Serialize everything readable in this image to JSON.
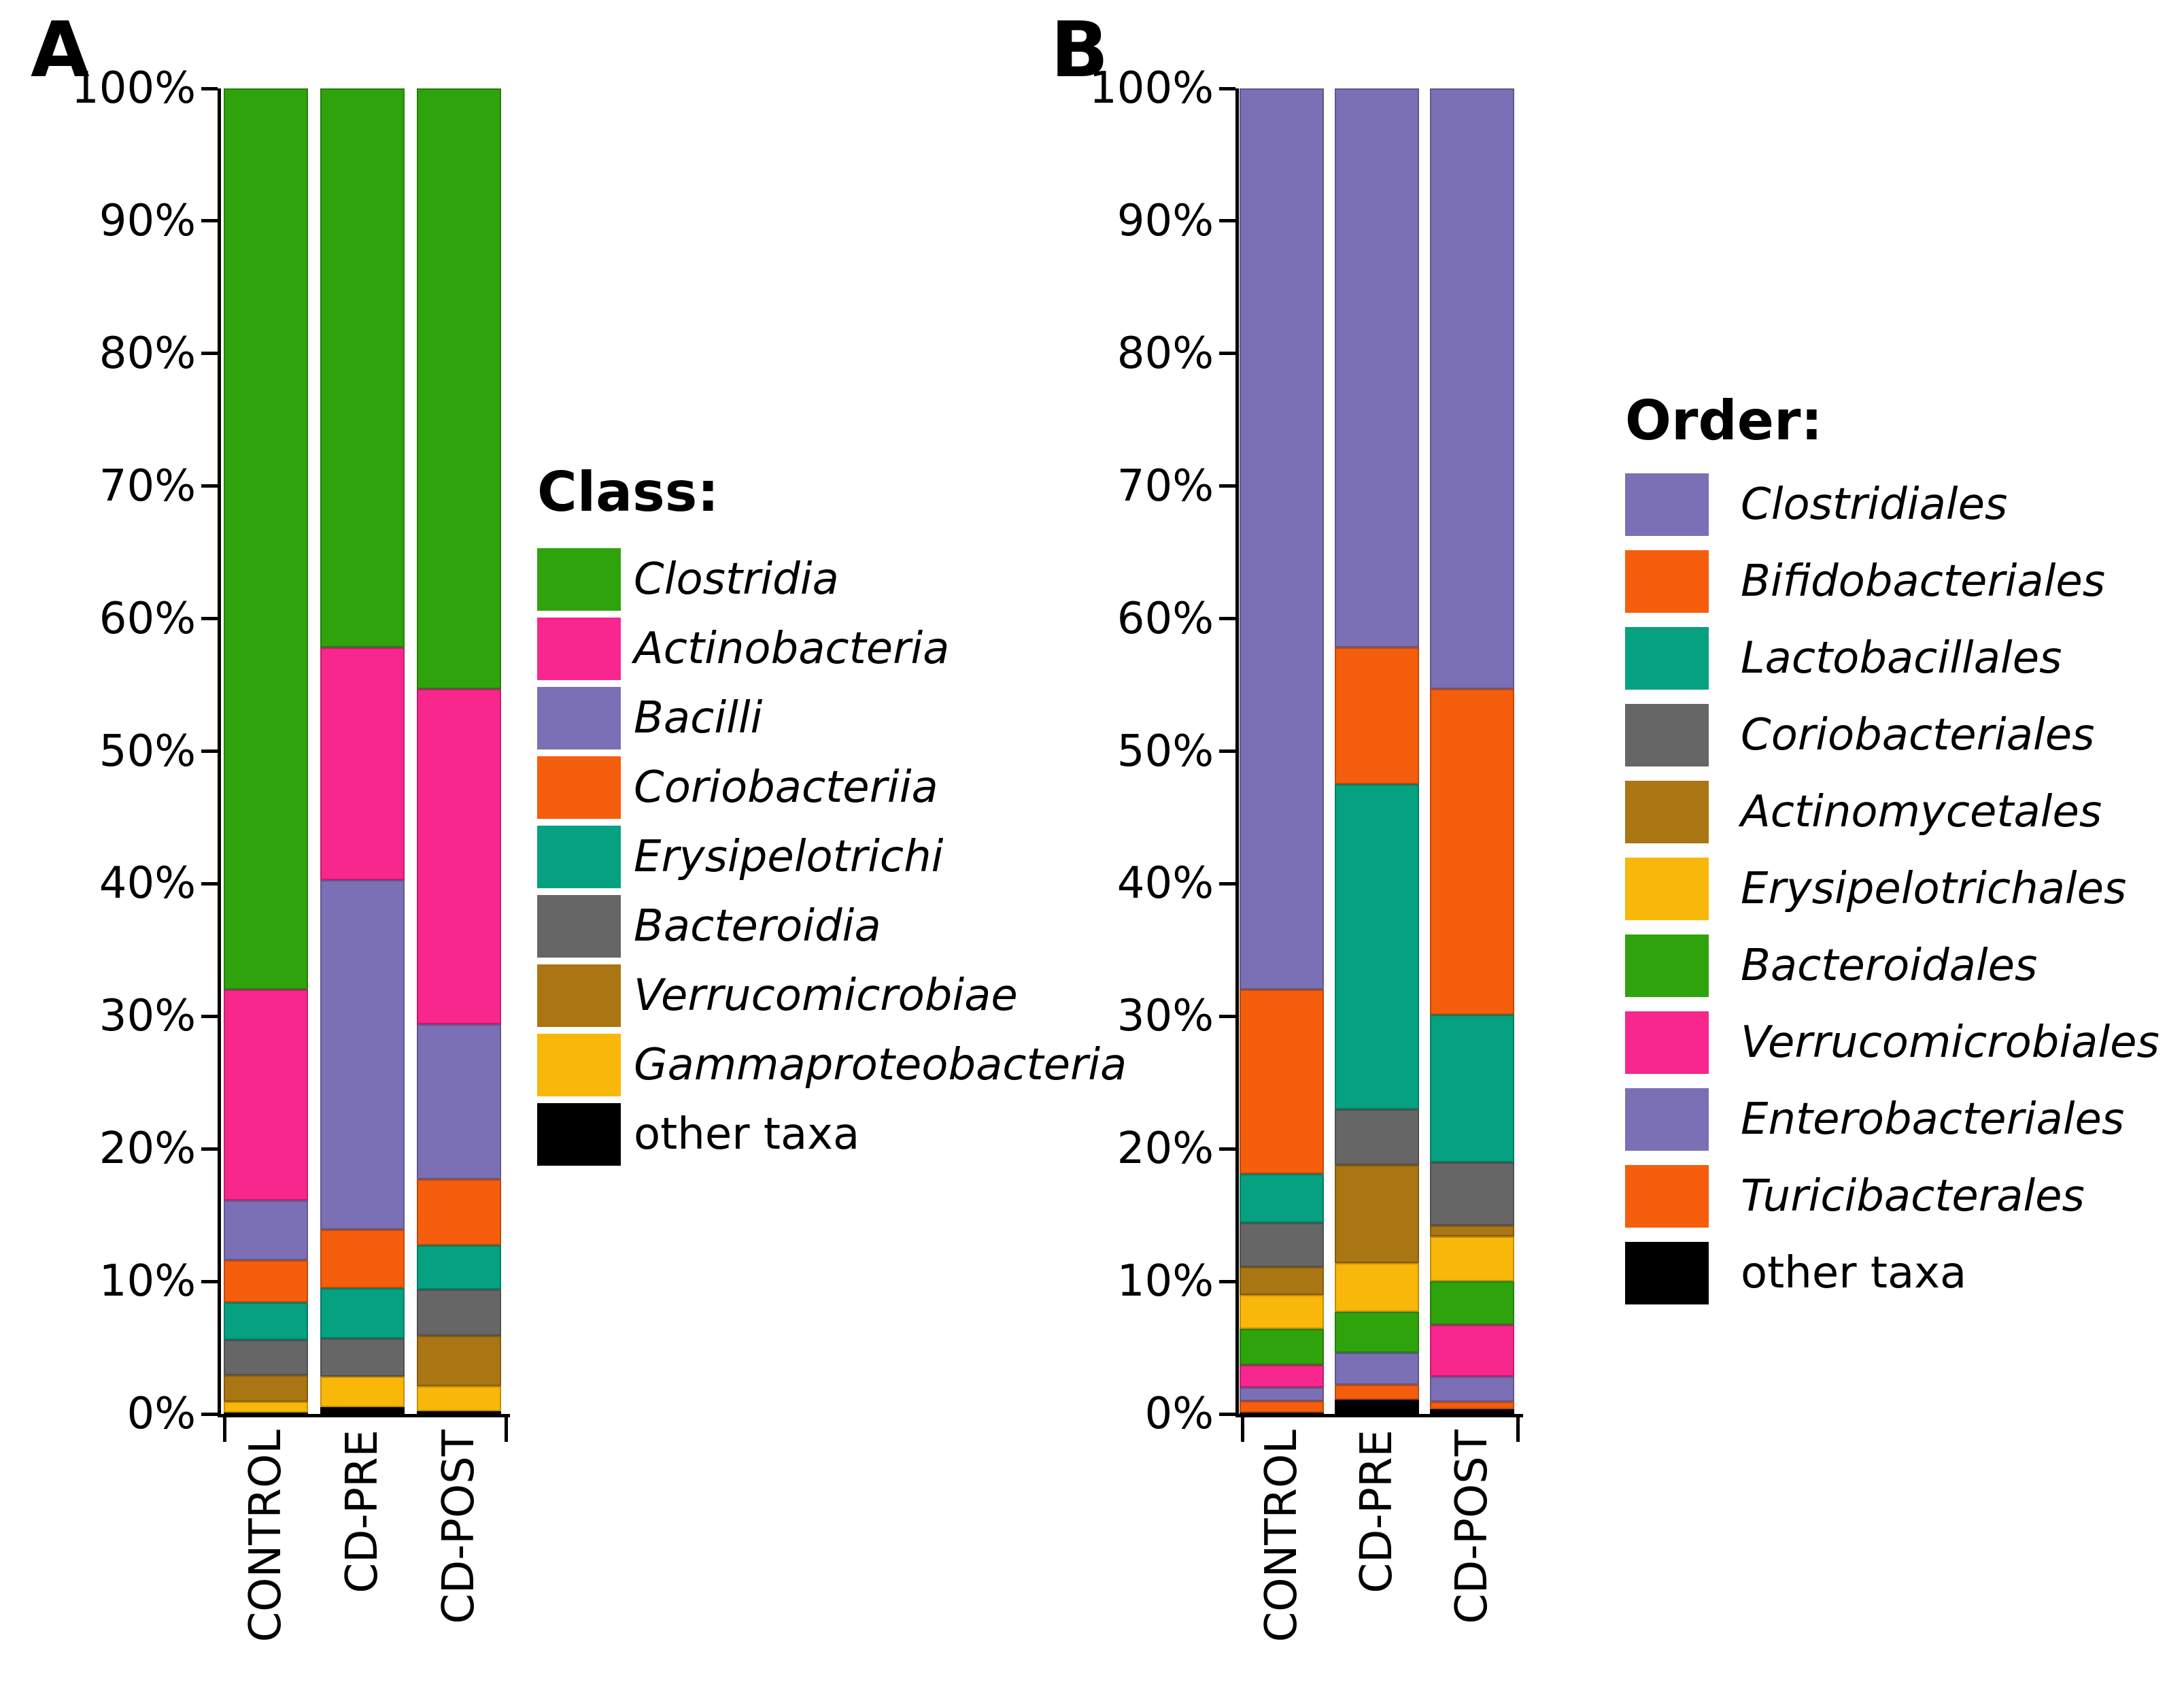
{
  "background_color": "#ffffff",
  "chart_data": [
    {
      "type": "bar",
      "stacked": true,
      "panel_label": "A",
      "legend_title": "Class:",
      "legend_position": "right",
      "categories": [
        "CONTROL",
        "CD-PRE",
        "CD-POST"
      ],
      "y_tick_labels": [
        "100%",
        "90%",
        "80%",
        "70%",
        "60%",
        "50%",
        "40%",
        "30%",
        "20%",
        "10%",
        "0%"
      ],
      "ylim": [
        0,
        100
      ],
      "grid": false,
      "series": [
        {
          "name": "Clostridia",
          "color": "#2fa30c",
          "italic": true,
          "values": [
            68.0,
            42.2,
            45.3
          ]
        },
        {
          "name": "Actinobacteria",
          "color": "#f7278d",
          "italic": true,
          "values": [
            15.9,
            17.5,
            25.3
          ]
        },
        {
          "name": "Bacilli",
          "color": "#7b70b5",
          "italic": true,
          "values": [
            4.5,
            26.4,
            11.7
          ]
        },
        {
          "name": "Coriobacteriia",
          "color": "#f55e0d",
          "italic": true,
          "values": [
            3.2,
            4.4,
            5.0
          ]
        },
        {
          "name": "Erysipelotrichi",
          "color": "#05a181",
          "italic": true,
          "values": [
            2.8,
            3.8,
            3.3
          ]
        },
        {
          "name": "Bacteroidia",
          "color": "#666666",
          "italic": true,
          "values": [
            2.7,
            2.9,
            3.5
          ]
        },
        {
          "name": "Verrucomicrobiae",
          "color": "#aa7513",
          "italic": true,
          "values": [
            2.0,
            0.0,
            3.8
          ]
        },
        {
          "name": "Gammaproteobacteria",
          "color": "#f8b709",
          "italic": true,
          "values": [
            0.8,
            2.3,
            1.9
          ]
        },
        {
          "name": "other taxa",
          "color": "#000000",
          "italic": false,
          "values": [
            0.1,
            0.5,
            0.2
          ]
        }
      ]
    },
    {
      "type": "bar",
      "stacked": true,
      "panel_label": "B",
      "legend_title": "Order:",
      "legend_position": "right",
      "categories": [
        "CONTROL",
        "CD-PRE",
        "CD-POST"
      ],
      "y_tick_labels": [
        "100%",
        "90%",
        "80%",
        "70%",
        "60%",
        "50%",
        "40%",
        "30%",
        "20%",
        "10%",
        "0%"
      ],
      "ylim": [
        0,
        100
      ],
      "grid": false,
      "series": [
        {
          "name": "Clostridiales",
          "color": "#7b70b5",
          "italic": true,
          "values": [
            68.0,
            42.2,
            45.3
          ]
        },
        {
          "name": "Bifidobacteriales",
          "color": "#f55e0d",
          "italic": true,
          "values": [
            13.9,
            10.3,
            24.6
          ]
        },
        {
          "name": "Lactobacillales",
          "color": "#05a181",
          "italic": true,
          "values": [
            3.7,
            24.5,
            11.1
          ]
        },
        {
          "name": "Coriobacteriales",
          "color": "#666666",
          "italic": true,
          "values": [
            3.3,
            4.2,
            4.8
          ]
        },
        {
          "name": "Actinomycetales",
          "color": "#aa7513",
          "italic": true,
          "values": [
            2.1,
            7.4,
            0.8
          ]
        },
        {
          "name": "Erysipelotrichales",
          "color": "#f8b709",
          "italic": true,
          "values": [
            2.6,
            3.7,
            3.4
          ]
        },
        {
          "name": "Bacteroidales",
          "color": "#2fa30c",
          "italic": true,
          "values": [
            2.7,
            3.1,
            3.3
          ]
        },
        {
          "name": "Verrucomicrobiales",
          "color": "#f7278d",
          "italic": true,
          "values": [
            1.7,
            0.0,
            3.9
          ]
        },
        {
          "name": "Enterobacteriales",
          "color": "#7b70b5",
          "italic": true,
          "values": [
            1.05,
            2.4,
            1.9
          ]
        },
        {
          "name": "Turicibacterales",
          "color": "#f55e0d",
          "italic": true,
          "values": [
            0.85,
            1.15,
            0.55
          ]
        },
        {
          "name": "other taxa",
          "color": "#000000",
          "italic": false,
          "values": [
            0.1,
            1.05,
            0.35
          ]
        }
      ]
    }
  ]
}
